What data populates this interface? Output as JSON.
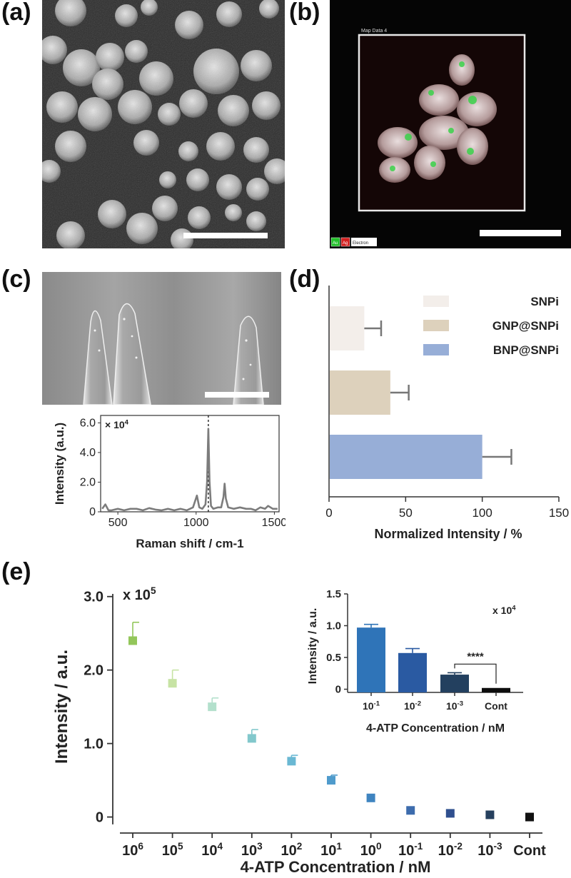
{
  "panels": {
    "a": {
      "label": "(a)"
    },
    "b": {
      "label": "(b)",
      "map_title": "Map Data 4",
      "legend": [
        {
          "text": "Au",
          "color": "#22c02a"
        },
        {
          "text": "Ag",
          "color": "#d42020"
        },
        {
          "text": "Electron",
          "color": "#ffffff"
        }
      ]
    },
    "c": {
      "label": "(c)"
    },
    "d": {
      "label": "(d)"
    },
    "e": {
      "label": "(e)"
    }
  },
  "chart_data": [
    {
      "id": "c-spectrum",
      "type": "line",
      "xlabel": "Raman shift / cm-1",
      "ylabel": "Intensity (a.u.)",
      "multiplier": "× 10",
      "multiplier_exp": "4",
      "xlim": [
        390,
        1530
      ],
      "ylim": [
        0,
        6.5
      ],
      "xticks": [
        "500",
        "1000",
        "1500"
      ],
      "xtick_values": [
        500,
        1000,
        1500
      ],
      "yticks": [
        "0",
        "2.0",
        "4.0",
        "6.0"
      ],
      "ytick_values": [
        0,
        2,
        4,
        6
      ],
      "marker_x": 1078,
      "x": [
        400,
        420,
        440,
        460,
        500,
        540,
        580,
        620,
        660,
        700,
        740,
        780,
        820,
        860,
        900,
        940,
        980,
        1005,
        1020,
        1040,
        1060,
        1070,
        1078,
        1086,
        1095,
        1110,
        1140,
        1160,
        1175,
        1182,
        1190,
        1205,
        1240,
        1280,
        1320,
        1350,
        1380,
        1410,
        1440,
        1460,
        1490,
        1520
      ],
      "y": [
        0.2,
        0.5,
        0.1,
        0.1,
        0.2,
        0.1,
        0.2,
        0.2,
        0.1,
        0.25,
        0.15,
        0.1,
        0.2,
        0.1,
        0.2,
        0.1,
        0.3,
        1.1,
        0.3,
        0.2,
        0.5,
        2.0,
        5.6,
        2.0,
        0.4,
        0.2,
        0.3,
        0.3,
        1.0,
        1.9,
        0.9,
        0.3,
        0.2,
        0.3,
        0.2,
        0.2,
        0.1,
        0.3,
        0.2,
        0.4,
        0.2,
        0.2
      ]
    },
    {
      "id": "d-bars",
      "type": "bar",
      "orientation": "horizontal",
      "xlabel": "Normalized Intensity / %",
      "xlim": [
        0,
        150
      ],
      "xticks": [
        "0",
        "50",
        "100",
        "150"
      ],
      "xtick_values": [
        0,
        50,
        100,
        150
      ],
      "legend_placement": "top-right",
      "series": [
        {
          "name": "SNPi",
          "value": 23,
          "error": 11,
          "color": "#f3eeea"
        },
        {
          "name": "GNP@SNPi",
          "value": 40,
          "error": 12,
          "color": "#ddd1bc"
        },
        {
          "name": "BNP@SNPi",
          "value": 100,
          "error": 19,
          "color": "#97aed7"
        }
      ]
    },
    {
      "id": "e-main",
      "type": "scatter",
      "xlabel": "4-ATP Concentration  / nM",
      "ylabel": "Intensity / a.u.",
      "multiplier": "x 10",
      "multiplier_exp": "5",
      "ylim": [
        -0.15,
        3.25
      ],
      "yticks": [
        "0",
        "1.0",
        "2.0",
        "3.0"
      ],
      "ytick_values": [
        0,
        1,
        2,
        3
      ],
      "categories": [
        {
          "base": "10",
          "exp": "6"
        },
        {
          "base": "10",
          "exp": "5"
        },
        {
          "base": "10",
          "exp": "4"
        },
        {
          "base": "10",
          "exp": "3"
        },
        {
          "base": "10",
          "exp": "2"
        },
        {
          "base": "10",
          "exp": "1"
        },
        {
          "base": "10",
          "exp": "0"
        },
        {
          "base": "10",
          "exp": "-1"
        },
        {
          "base": "10",
          "exp": "-2"
        },
        {
          "base": "10",
          "exp": "-3"
        },
        {
          "base": "Cont",
          "exp": ""
        }
      ],
      "values": [
        2.4,
        1.82,
        1.5,
        1.07,
        0.76,
        0.5,
        0.26,
        0.09,
        0.05,
        0.03,
        0.0
      ],
      "errors": [
        0.25,
        0.18,
        0.12,
        0.12,
        0.08,
        0.07,
        0.0,
        0.0,
        0.0,
        0.0,
        0.0
      ],
      "colors": [
        "#93c65a",
        "#c7e3a4",
        "#b3e0cc",
        "#82c8cc",
        "#6ab8d3",
        "#4f9bcc",
        "#3f84c0",
        "#3d6cad",
        "#2f4f8e",
        "#26405e",
        "#111111"
      ]
    },
    {
      "id": "e-inset",
      "type": "bar",
      "xlabel": "4-ATP Concentration / nM",
      "ylabel": "Intensity / a.u.",
      "multiplier": "x 10",
      "multiplier_exp": "4",
      "ylim": [
        -0.05,
        1.5
      ],
      "yticks": [
        "0",
        "0.5",
        "1.0",
        "1.5"
      ],
      "ytick_values": [
        0,
        0.5,
        1.0,
        1.5
      ],
      "categories": [
        {
          "base": "10",
          "exp": "-1"
        },
        {
          "base": "10",
          "exp": "-2"
        },
        {
          "base": "10",
          "exp": "-3"
        },
        {
          "base": "Cont",
          "exp": ""
        }
      ],
      "values": [
        0.97,
        0.57,
        0.23,
        0.02
      ],
      "errors": [
        0.05,
        0.07,
        0.03,
        0.0
      ],
      "colors": [
        "#2f74b8",
        "#2a5aa2",
        "#23405f",
        "#0d0d0d"
      ],
      "significance": "****"
    }
  ]
}
